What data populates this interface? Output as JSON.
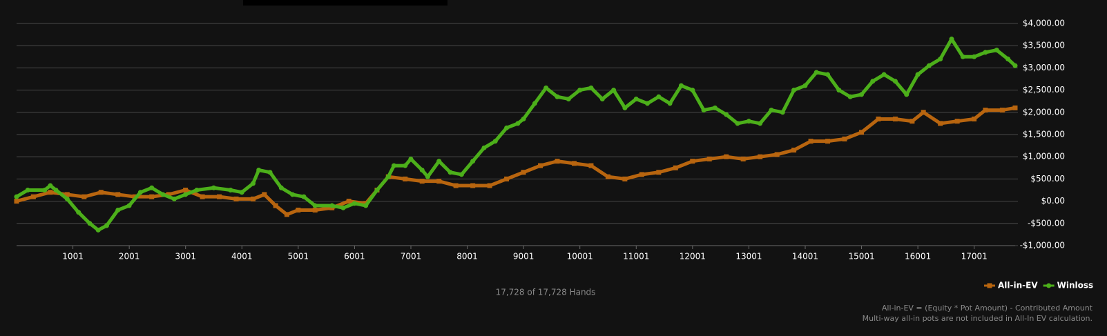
{
  "chart_data": {
    "type": "line",
    "xlim": [
      1,
      17728
    ],
    "xticks": [
      1001,
      2001,
      3001,
      4001,
      5001,
      6001,
      7001,
      8001,
      9001,
      10001,
      11001,
      12001,
      13001,
      14001,
      15001,
      16001,
      17001
    ],
    "ylim": [
      -1000,
      4000
    ],
    "yticks": [
      {
        "value": -1000,
        "label": "-$1,000.00"
      },
      {
        "value": -500,
        "label": "-$500.00"
      },
      {
        "value": 0,
        "label": "$0.00"
      },
      {
        "value": 500,
        "label": "$500.00"
      },
      {
        "value": 1000,
        "label": "$1,000.00"
      },
      {
        "value": 1500,
        "label": "$1,500.00"
      },
      {
        "value": 2000,
        "label": "$2,000.00"
      },
      {
        "value": 2500,
        "label": "$2,500.00"
      },
      {
        "value": 3000,
        "label": "$3,000.00"
      },
      {
        "value": 3500,
        "label": "$3,500.00"
      },
      {
        "value": 4000,
        "label": "$4,000.00"
      }
    ],
    "grid": true,
    "legend": "bottom-right",
    "series": [
      {
        "name": "All-in-EV",
        "color": "#b8650f",
        "marker": "square",
        "x": [
          1,
          300,
          600,
          900,
          1200,
          1500,
          1800,
          2100,
          2400,
          2700,
          3000,
          3300,
          3600,
          3900,
          4200,
          4400,
          4600,
          4800,
          5000,
          5300,
          5600,
          5900,
          6200,
          6400,
          6600,
          6900,
          7200,
          7500,
          7800,
          8100,
          8400,
          8700,
          9000,
          9300,
          9600,
          9900,
          10200,
          10500,
          10800,
          11100,
          11400,
          11700,
          12000,
          12300,
          12600,
          12900,
          13200,
          13500,
          13800,
          14100,
          14400,
          14700,
          15000,
          15300,
          15600,
          15900,
          16100,
          16400,
          16700,
          17000,
          17200,
          17500,
          17728
        ],
        "values": [
          0,
          100,
          200,
          150,
          100,
          200,
          150,
          100,
          100,
          150,
          250,
          100,
          100,
          50,
          50,
          150,
          -100,
          -300,
          -200,
          -200,
          -150,
          0,
          -50,
          250,
          550,
          500,
          450,
          450,
          350,
          350,
          350,
          500,
          650,
          800,
          900,
          850,
          800,
          550,
          500,
          600,
          650,
          750,
          900,
          950,
          1000,
          950,
          1000,
          1050,
          1150,
          1350,
          1350,
          1400,
          1550,
          1850,
          1850,
          1800,
          2000,
          1750,
          1800,
          1850,
          2050,
          2050,
          2100
        ]
      },
      {
        "name": "Winloss",
        "color": "#4caf1a",
        "marker": "circle",
        "x": [
          1,
          200,
          500,
          600,
          700,
          900,
          1100,
          1300,
          1450,
          1600,
          1800,
          2000,
          2200,
          2400,
          2600,
          2800,
          3000,
          3200,
          3500,
          3800,
          4000,
          4200,
          4300,
          4500,
          4700,
          4900,
          5100,
          5300,
          5600,
          5800,
          6000,
          6200,
          6400,
          6600,
          6700,
          6900,
          7000,
          7200,
          7300,
          7500,
          7700,
          7900,
          8100,
          8300,
          8500,
          8700,
          8900,
          9000,
          9200,
          9400,
          9600,
          9800,
          10000,
          10200,
          10400,
          10600,
          10800,
          11000,
          11200,
          11400,
          11600,
          11800,
          12000,
          12200,
          12400,
          12600,
          12800,
          13000,
          13200,
          13400,
          13600,
          13800,
          14000,
          14200,
          14400,
          14600,
          14800,
          15000,
          15200,
          15400,
          15600,
          15800,
          16000,
          16200,
          16400,
          16600,
          16800,
          17000,
          17200,
          17400,
          17600,
          17728
        ],
        "values": [
          100,
          250,
          250,
          350,
          250,
          50,
          -250,
          -500,
          -650,
          -550,
          -200,
          -100,
          200,
          300,
          150,
          50,
          150,
          250,
          300,
          250,
          200,
          400,
          700,
          650,
          300,
          150,
          100,
          -100,
          -100,
          -150,
          -50,
          -100,
          250,
          550,
          800,
          800,
          950,
          700,
          550,
          900,
          650,
          600,
          900,
          1200,
          1350,
          1650,
          1750,
          1850,
          2200,
          2550,
          2350,
          2300,
          2500,
          2550,
          2300,
          2500,
          2100,
          2300,
          2200,
          2350,
          2200,
          2600,
          2500,
          2050,
          2100,
          1950,
          1750,
          1800,
          1750,
          2050,
          2000,
          2500,
          2600,
          2900,
          2850,
          2500,
          2350,
          2400,
          2700,
          2850,
          2700,
          2400,
          2850,
          3050,
          3200,
          3650,
          3250,
          3250,
          3350,
          3400,
          3200,
          3050
        ]
      }
    ],
    "footer": "17,728 of 17,728 Hands",
    "notes": [
      "All-in-EV = (Equity * Pot Amount) - Contributed Amount",
      "Multi-way all-in pots are not included in All-In EV calculation."
    ]
  }
}
